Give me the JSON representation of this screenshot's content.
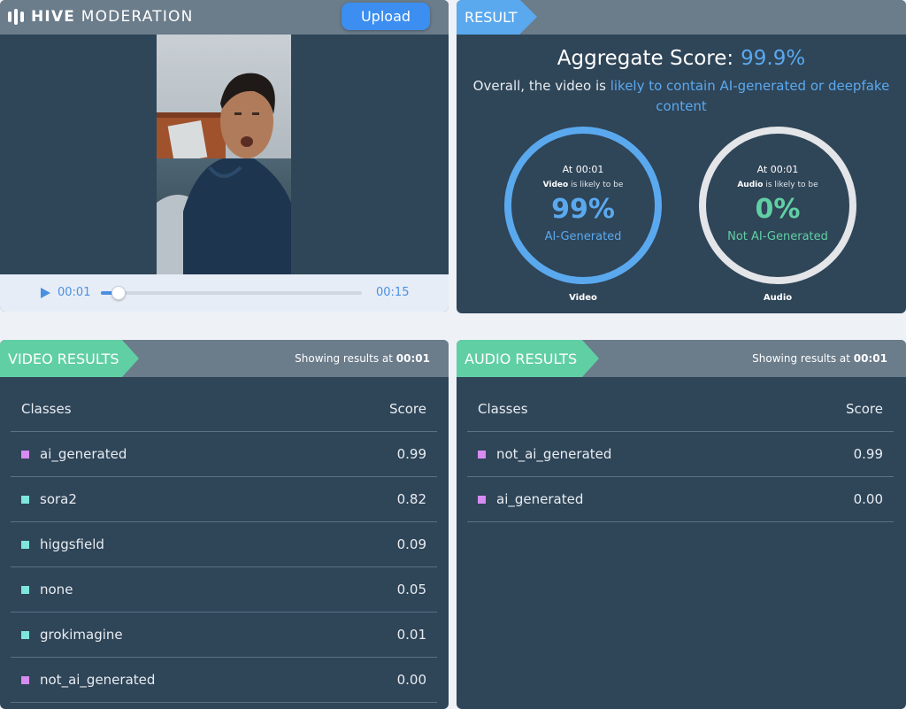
{
  "brand": {
    "word1": "HIVE",
    "word2": "MODERATION"
  },
  "upload_label": "Upload",
  "player": {
    "current_time": "00:01",
    "end_time": "00:15",
    "progress": 0.067
  },
  "result": {
    "header": "RESULT",
    "aggregate_label": "Aggregate Score:",
    "aggregate_value": "99.9%",
    "overall_prefix": "Overall, the video is",
    "overall_highlight": "likely to contain AI-generated or deepfake content",
    "video": {
      "at": "At 00:01",
      "subject": "Video",
      "likely": "is likely to be",
      "pct": "99%",
      "verdict": "AI-Generated",
      "caption": "Video"
    },
    "audio": {
      "at": "At 00:01",
      "subject": "Audio",
      "likely": "is likely to be",
      "pct": "0%",
      "verdict": "Not AI-Generated",
      "caption": "Audio"
    }
  },
  "video_results": {
    "header": "VIDEO RESULTS",
    "showing_prefix": "Showing results at",
    "showing_time": "00:01",
    "col_classes": "Classes",
    "col_score": "Score",
    "rows": [
      {
        "name": "ai_generated",
        "score": "0.99",
        "color": "#d68cf0"
      },
      {
        "name": "sora2",
        "score": "0.82",
        "color": "#7ee6dc"
      },
      {
        "name": "higgsfield",
        "score": "0.09",
        "color": "#7ee6dc"
      },
      {
        "name": "none",
        "score": "0.05",
        "color": "#7ee6dc"
      },
      {
        "name": "grokimagine",
        "score": "0.01",
        "color": "#7ee6dc"
      },
      {
        "name": "not_ai_generated",
        "score": "0.00",
        "color": "#d68cf0"
      }
    ]
  },
  "audio_results": {
    "header": "AUDIO RESULTS",
    "showing_prefix": "Showing results at",
    "showing_time": "00:01",
    "col_classes": "Classes",
    "col_score": "Score",
    "rows": [
      {
        "name": "not_ai_generated",
        "score": "0.99",
        "color": "#d68cf0"
      },
      {
        "name": "ai_generated",
        "score": "0.00",
        "color": "#d68cf0"
      }
    ]
  },
  "colors": {
    "panel": "#2f4558",
    "header": "#6b7c8b",
    "accent_blue": "#5aa9ef",
    "accent_green": "#61cfa4"
  }
}
